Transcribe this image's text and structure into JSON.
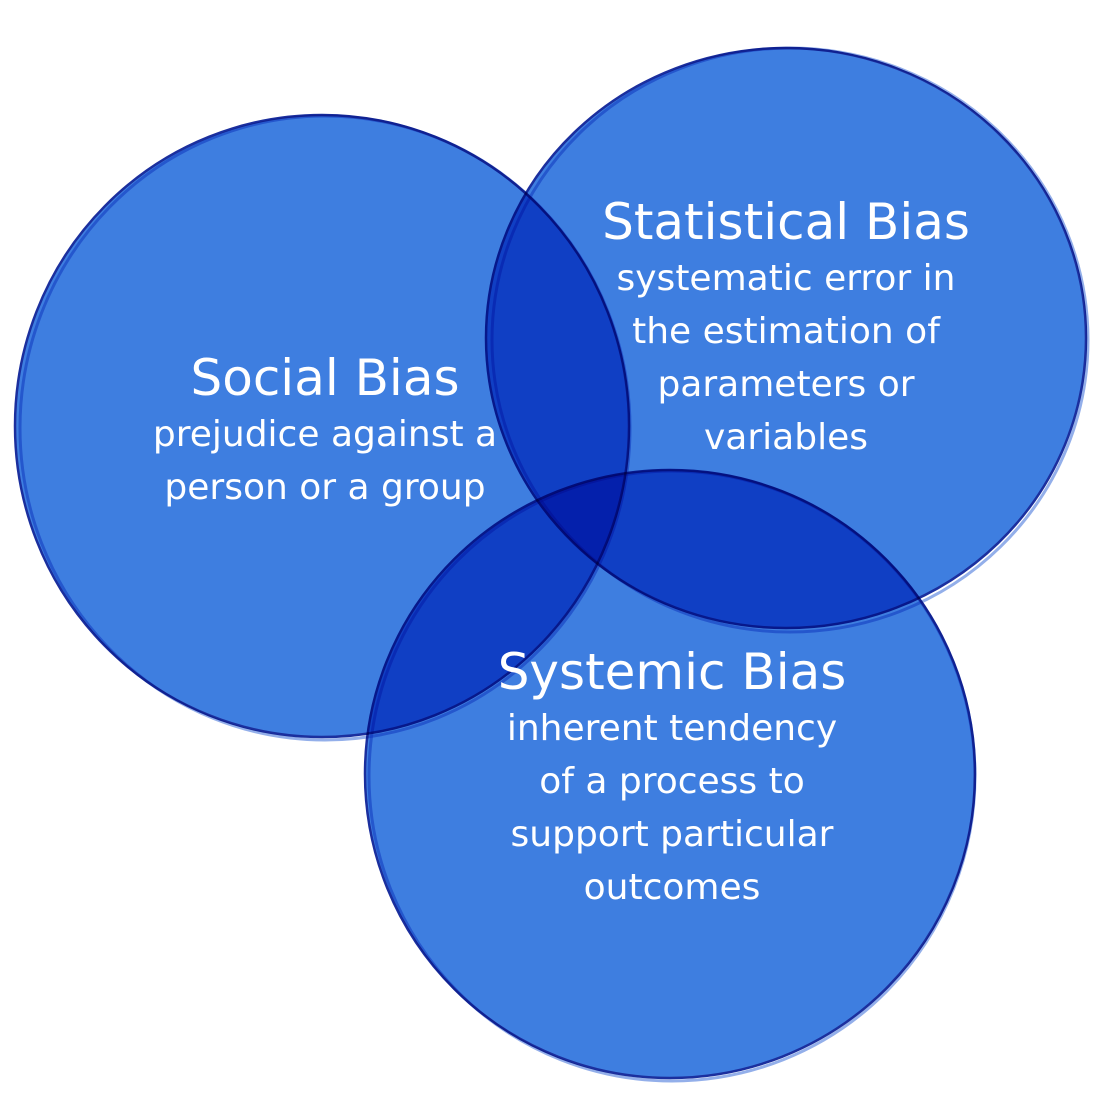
{
  "diagram": {
    "colors": {
      "fill": "#2f74de",
      "stroke": "#1b2f9e",
      "text": "#ffffff"
    },
    "sets": [
      {
        "title": "Social Bias",
        "description_lines": [
          "prejudice against a",
          "person or a group"
        ]
      },
      {
        "title": "Statistical Bias",
        "description_lines": [
          "systematic error in",
          "the estimation of",
          "parameters or",
          "variables"
        ]
      },
      {
        "title": "Systemic Bias",
        "description_lines": [
          "inherent tendency",
          "of a process to",
          "support particular",
          "outcomes"
        ]
      }
    ]
  }
}
